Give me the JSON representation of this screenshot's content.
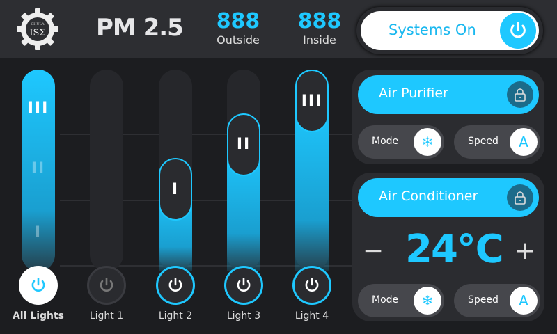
{
  "header": {
    "logo_text": "CHULA ISΣ",
    "title": "PM 2.5",
    "outside": {
      "value": "888",
      "label": "Outside"
    },
    "inside": {
      "value": "888",
      "label": "Inside"
    },
    "systems": {
      "label": "Systems On",
      "on": true
    }
  },
  "colors": {
    "accent": "#1ec8ff",
    "background": "#1c1d20",
    "header": "#2d2e32"
  },
  "lights": [
    {
      "label": "All Lights",
      "level": 1.0,
      "knob": "III",
      "on": true
    },
    {
      "label": "Light 1",
      "level": 0,
      "knob": "",
      "on": false
    },
    {
      "label": "Light 2",
      "level": 0.33,
      "knob": "I",
      "on": true
    },
    {
      "label": "Light 3",
      "level": 0.67,
      "knob": "II",
      "on": true
    },
    {
      "label": "Light 4",
      "level": 1.0,
      "knob": "III",
      "on": true
    }
  ],
  "purifier": {
    "title": "Air Purifier",
    "mode_label": "Mode",
    "mode_icon": "snowflake-icon",
    "speed_label": "Speed",
    "speed_value": "A"
  },
  "ac": {
    "title": "Air Conditioner",
    "temp": "24℃",
    "minus": "−",
    "plus": "+",
    "mode_label": "Mode",
    "mode_icon": "snowflake-icon",
    "speed_label": "Speed",
    "speed_value": "A"
  }
}
